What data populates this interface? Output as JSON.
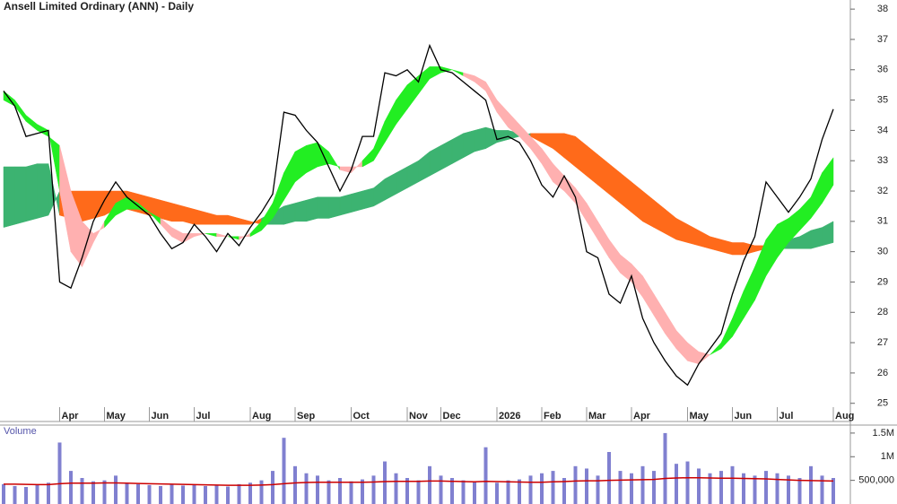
{
  "chart_data": [
    {
      "type": "price",
      "title": "Ansell Limited Ordinary (ANN) - Daily",
      "categories": [
        null,
        null,
        null,
        null,
        null,
        "Apr",
        null,
        null,
        null,
        "May",
        null,
        null,
        null,
        "Jun",
        null,
        null,
        null,
        "Jul",
        null,
        null,
        null,
        null,
        "Aug",
        null,
        null,
        null,
        "Sep",
        null,
        null,
        null,
        null,
        "Oct",
        null,
        null,
        null,
        null,
        "Nov",
        null,
        null,
        "Dec",
        null,
        null,
        null,
        null,
        "2026",
        null,
        null,
        null,
        "Feb",
        null,
        null,
        null,
        "Mar",
        null,
        null,
        null,
        "Apr",
        null,
        null,
        null,
        null,
        "May",
        null,
        null,
        null,
        "Jun",
        null,
        null,
        null,
        "Jul",
        null,
        null,
        null,
        null,
        "Aug"
      ],
      "values": [
        35.3,
        34.8,
        33.8,
        33.9,
        34.0,
        29.0,
        28.8,
        29.8,
        31.0,
        31.7,
        32.3,
        31.8,
        31.5,
        31.2,
        30.6,
        30.1,
        30.3,
        30.9,
        30.5,
        30.0,
        30.6,
        30.2,
        30.8,
        31.3,
        31.9,
        34.6,
        34.5,
        34.0,
        33.6,
        32.8,
        32.0,
        32.7,
        33.8,
        33.8,
        35.9,
        35.8,
        36.0,
        35.6,
        36.8,
        36.0,
        35.9,
        35.6,
        35.3,
        35.0,
        33.7,
        33.8,
        33.6,
        33.0,
        32.2,
        31.8,
        32.5,
        31.8,
        30.0,
        29.8,
        28.6,
        28.3,
        29.2,
        27.8,
        27.0,
        26.4,
        25.9,
        25.6,
        26.3,
        26.8,
        27.3,
        28.6,
        29.7,
        30.5,
        32.3,
        31.8,
        31.3,
        31.8,
        32.4,
        33.7,
        34.7
      ],
      "color": "#000000",
      "bands": [
        {
          "up_color": "#3cb371",
          "down_color": "#ff6a1a",
          "a": [
            32.8,
            32.8,
            32.8,
            32.9,
            32.9,
            31.2,
            31.1,
            31.0,
            31.1,
            31.2,
            31.4,
            31.4,
            31.3,
            31.2,
            31.1,
            31.0,
            31.0,
            30.9,
            30.9,
            30.9,
            30.9,
            30.9,
            30.9,
            31.1,
            31.3,
            31.5,
            31.6,
            31.7,
            31.8,
            31.8,
            31.8,
            31.9,
            32.0,
            32.1,
            32.4,
            32.6,
            32.8,
            33.0,
            33.3,
            33.5,
            33.7,
            33.9,
            34.0,
            34.1,
            34.0,
            34.0,
            33.9,
            33.8,
            33.6,
            33.4,
            33.1,
            32.8,
            32.5,
            32.2,
            31.9,
            31.6,
            31.3,
            31.0,
            30.8,
            30.6,
            30.4,
            30.3,
            30.2,
            30.1,
            30.0,
            29.9,
            29.9,
            30.0,
            30.1,
            30.3,
            30.4,
            30.5,
            30.7,
            30.8,
            31.0
          ],
          "b": [
            30.8,
            30.9,
            31.0,
            31.1,
            31.2,
            32.0,
            32.0,
            32.0,
            32.0,
            32.0,
            32.0,
            32.0,
            31.9,
            31.8,
            31.7,
            31.6,
            31.5,
            31.4,
            31.3,
            31.2,
            31.2,
            31.1,
            31.0,
            30.9,
            30.9,
            30.9,
            31.0,
            31.0,
            31.1,
            31.1,
            31.2,
            31.3,
            31.4,
            31.5,
            31.7,
            31.9,
            32.1,
            32.3,
            32.5,
            32.7,
            32.9,
            33.1,
            33.3,
            33.4,
            33.6,
            33.7,
            33.8,
            33.9,
            33.9,
            33.9,
            33.9,
            33.8,
            33.5,
            33.2,
            32.9,
            32.6,
            32.3,
            32.0,
            31.7,
            31.4,
            31.1,
            30.9,
            30.7,
            30.5,
            30.4,
            30.3,
            30.3,
            30.2,
            30.2,
            30.1,
            30.1,
            30.1,
            30.1,
            30.2,
            30.3
          ]
        },
        {
          "up_color": "#22ee22",
          "down_color": "#ffb0b0",
          "a": [
            35.3,
            35.0,
            34.5,
            34.2,
            34.0,
            32.0,
            30.0,
            29.5,
            30.3,
            31.0,
            31.6,
            31.8,
            31.6,
            31.3,
            30.9,
            30.5,
            30.3,
            30.5,
            30.6,
            30.5,
            30.5,
            30.4,
            30.6,
            31.0,
            31.6,
            32.6,
            33.3,
            33.5,
            33.6,
            33.3,
            32.7,
            32.6,
            33.0,
            33.4,
            34.3,
            35.0,
            35.5,
            35.8,
            36.1,
            36.1,
            36.0,
            35.8,
            35.6,
            35.3,
            34.6,
            34.1,
            33.8,
            33.4,
            32.9,
            32.3,
            32.0,
            31.6,
            31.0,
            30.4,
            29.8,
            29.3,
            29.0,
            28.5,
            27.9,
            27.3,
            26.8,
            26.4,
            26.3,
            26.6,
            27.0,
            27.8,
            28.7,
            29.5,
            30.4,
            30.9,
            31.1,
            31.4,
            31.8,
            32.6,
            33.1
          ],
          "b": [
            35.0,
            34.8,
            34.3,
            34.0,
            33.8,
            33.5,
            32.0,
            31.0,
            30.6,
            30.8,
            31.2,
            31.4,
            31.4,
            31.3,
            31.1,
            30.8,
            30.6,
            30.6,
            30.6,
            30.6,
            30.5,
            30.5,
            30.5,
            30.7,
            31.1,
            31.7,
            32.3,
            32.6,
            32.8,
            32.9,
            32.8,
            32.8,
            32.8,
            33.0,
            33.6,
            34.2,
            34.7,
            35.2,
            35.7,
            35.9,
            36.0,
            35.9,
            35.8,
            35.6,
            35.0,
            34.6,
            34.2,
            33.8,
            33.4,
            32.9,
            32.5,
            32.1,
            31.6,
            31.0,
            30.4,
            29.9,
            29.6,
            29.2,
            28.6,
            28.0,
            27.4,
            27.0,
            26.7,
            26.6,
            26.8,
            27.2,
            27.8,
            28.4,
            29.2,
            29.8,
            30.3,
            30.7,
            31.1,
            31.6,
            32.2
          ]
        }
      ],
      "ylim": [
        24.4,
        38.3
      ],
      "yticks": [
        25,
        26,
        27,
        28,
        29,
        30,
        31,
        32,
        33,
        34,
        35,
        36,
        37,
        38
      ]
    },
    {
      "type": "volume",
      "title": "Volume",
      "values": [
        420000,
        380000,
        360000,
        400000,
        450000,
        1300000,
        700000,
        550000,
        480000,
        500000,
        600000,
        450000,
        420000,
        400000,
        380000,
        420000,
        390000,
        410000,
        380000,
        400000,
        370000,
        420000,
        450000,
        500000,
        700000,
        1400000,
        800000,
        650000,
        600000,
        500000,
        550000,
        480000,
        520000,
        600000,
        900000,
        650000,
        550000,
        500000,
        800000,
        600000,
        550000,
        500000,
        480000,
        1200000,
        450000,
        500000,
        520000,
        600000,
        650000,
        700000,
        550000,
        800000,
        750000,
        600000,
        1100000,
        700000,
        650000,
        800000,
        700000,
        1500000,
        850000,
        900000,
        750000,
        650000,
        700000,
        800000,
        650000,
        600000,
        700000,
        650000,
        600000,
        550000,
        800000,
        600000,
        550000
      ],
      "color": "#8080d0",
      "average": {
        "color": "#cc0000",
        "values": [
          420000,
          420000,
          415000,
          410000,
          410000,
          430000,
          440000,
          440000,
          440000,
          445000,
          445000,
          440000,
          435000,
          430000,
          425000,
          420000,
          415000,
          410000,
          405000,
          400000,
          395000,
          395000,
          395000,
          400000,
          410000,
          430000,
          445000,
          455000,
          460000,
          460000,
          460000,
          460000,
          460000,
          465000,
          475000,
          480000,
          480000,
          480000,
          485000,
          485000,
          480000,
          475000,
          470000,
          480000,
          475000,
          470000,
          465000,
          460000,
          460000,
          470000,
          475000,
          485000,
          490000,
          490000,
          500000,
          505000,
          510000,
          515000,
          520000,
          540000,
          550000,
          555000,
          555000,
          550000,
          545000,
          545000,
          540000,
          535000,
          530000,
          520000,
          510000,
          500000,
          495000,
          490000,
          485000
        ]
      },
      "ylim": [
        0,
        1650000
      ],
      "yticks": [
        {
          "value": 500000,
          "label": "500,000"
        },
        {
          "value": 1000000,
          "label": "1M"
        },
        {
          "value": 1500000,
          "label": "1.5M"
        }
      ]
    }
  ]
}
